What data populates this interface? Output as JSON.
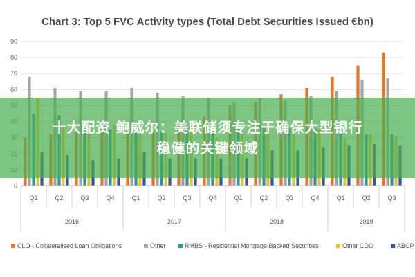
{
  "overlay": {
    "line1": "十大配资 鲍威尔：美联储须专注于确保大型银行",
    "line2": "稳健的关键领域"
  },
  "chart_data": {
    "type": "bar",
    "title": "Chart 3: Top 5 FVC Activity types (Total Debt Securities Issued €bn)",
    "ylim": [
      0,
      90
    ],
    "yticks": [
      0,
      10,
      20,
      30,
      40,
      50,
      60,
      70,
      80,
      90
    ],
    "grid": true,
    "legend_position": "bottom",
    "categories": [
      "Q1",
      "Q2",
      "Q3",
      "Q4",
      "Q1",
      "Q2",
      "Q3",
      "Q4",
      "Q1",
      "Q2",
      "Q3",
      "Q4",
      "Q1",
      "Q2",
      "Q3"
    ],
    "years": [
      {
        "label": "2016",
        "count": 4
      },
      {
        "label": "2017",
        "count": 4
      },
      {
        "label": "2018",
        "count": 4
      },
      {
        "label": "2019",
        "count": 3
      }
    ],
    "series": [
      {
        "name": "CLO - Collateralised Loan Obligations",
        "color": "#e8732a",
        "values": [
          30,
          32,
          34,
          35,
          33,
          34,
          40,
          43,
          50,
          52,
          57,
          61,
          68,
          75,
          83
        ]
      },
      {
        "name": "Other",
        "color": "#a5a5a5",
        "values": [
          68,
          61,
          59,
          59,
          61,
          58,
          56,
          55,
          52,
          55,
          53,
          56,
          59,
          66,
          67
        ]
      },
      {
        "name": "RMBS - Residential Mortgage Backed Securities",
        "color": "#2e93a8",
        "values": [
          45,
          44,
          36,
          35,
          33,
          34,
          34,
          36,
          35,
          36,
          36,
          36,
          33,
          32,
          32
        ]
      },
      {
        "name": "Other CDO",
        "color": "#f2c12e",
        "values": [
          55,
          37,
          36,
          38,
          34,
          33,
          34,
          30,
          33,
          34,
          35,
          35,
          30,
          32,
          31
        ]
      },
      {
        "name": "ABCP",
        "color": "#2f5597",
        "values": [
          21,
          19,
          16,
          17,
          21,
          17,
          17,
          17,
          17,
          22,
          22,
          24,
          25,
          26,
          25
        ]
      }
    ]
  }
}
